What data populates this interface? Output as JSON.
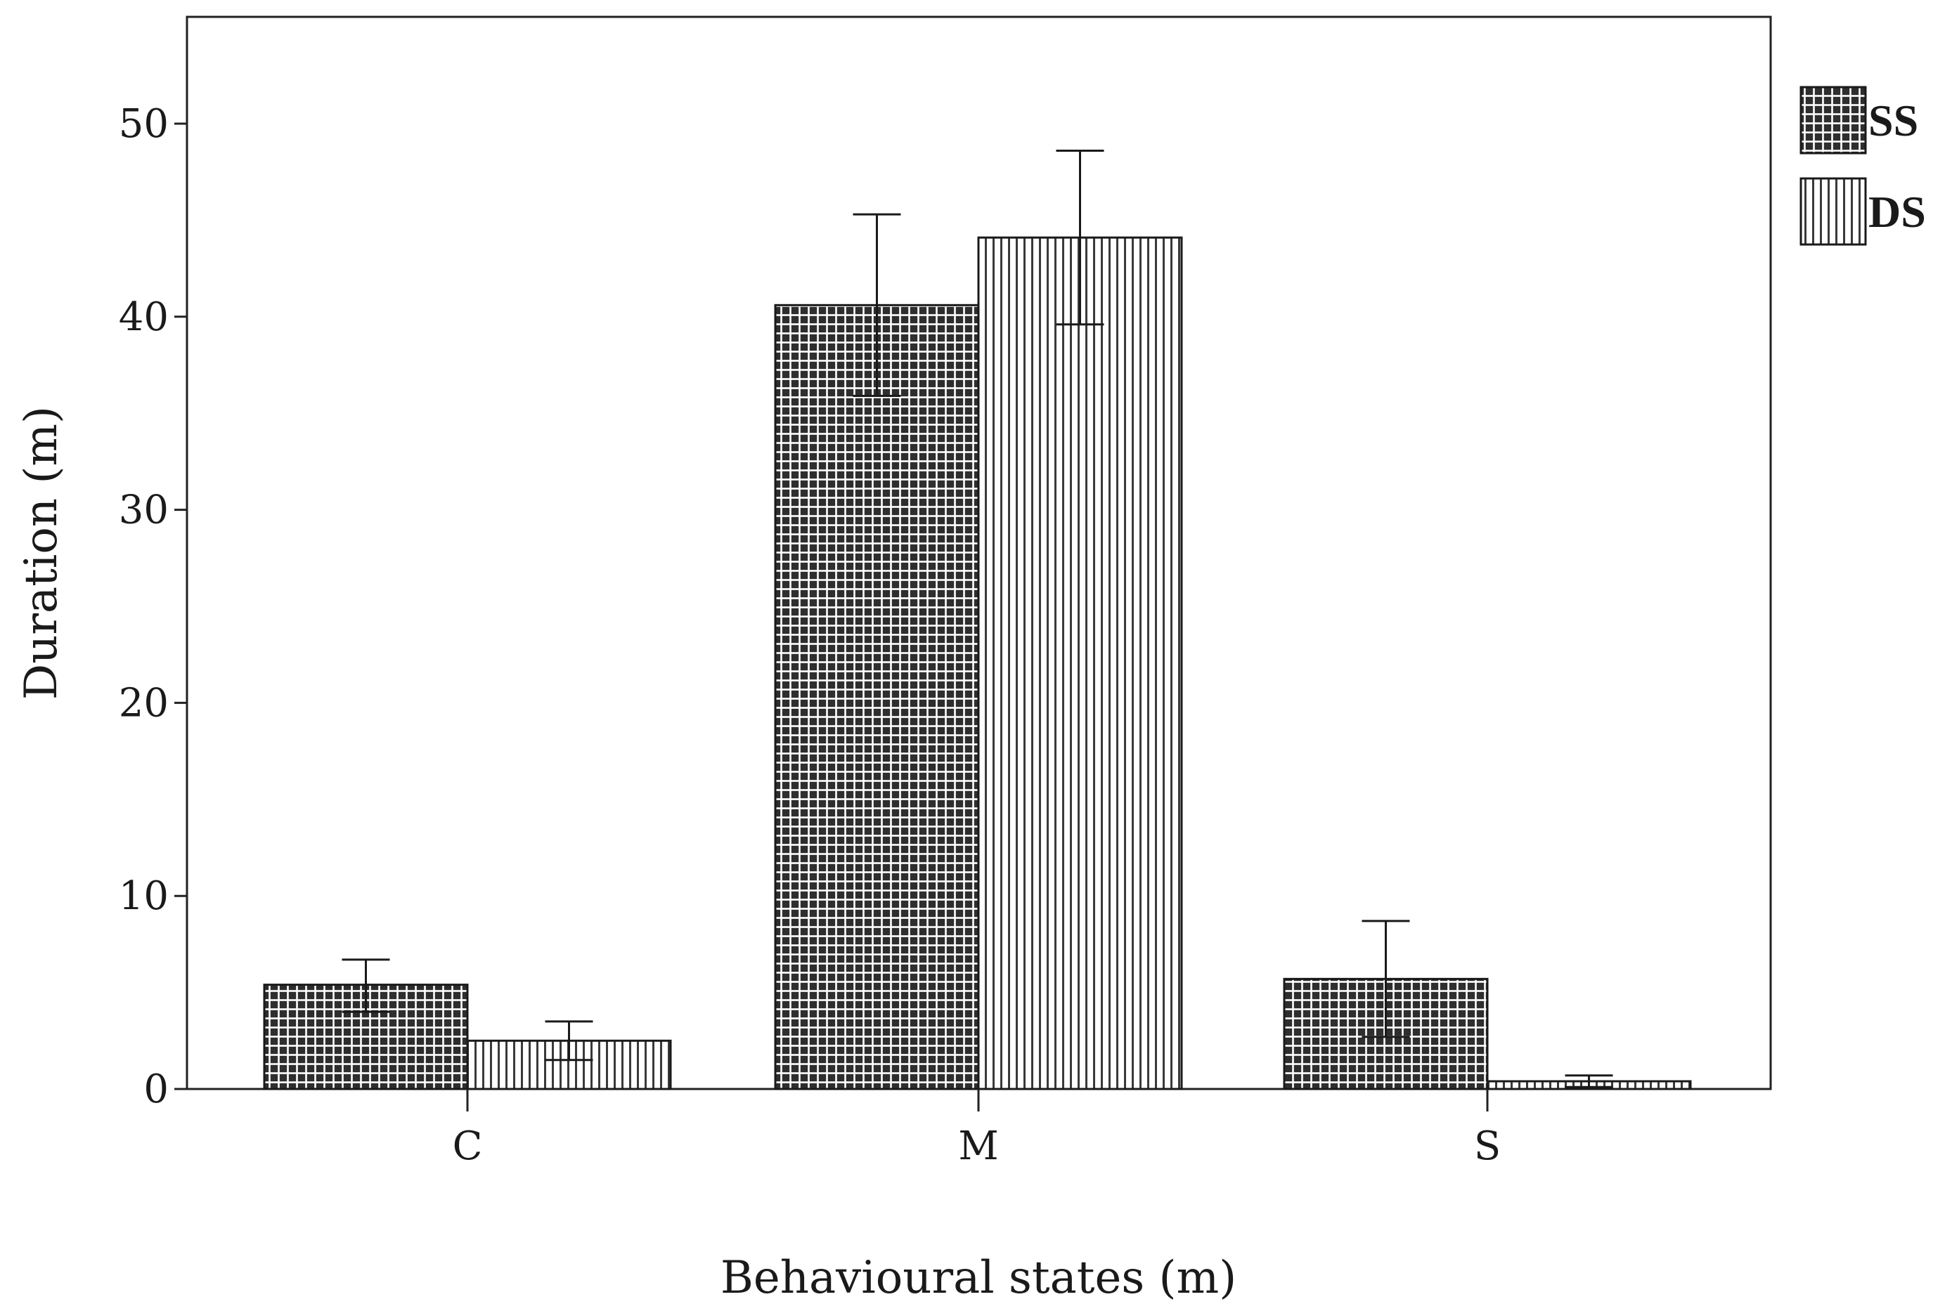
{
  "chart_data": {
    "type": "bar",
    "title": "",
    "xlabel": "Behavioural states (m)",
    "ylabel": "Duration (m)",
    "categories": [
      "C",
      "M",
      "S"
    ],
    "ylim": [
      0,
      55
    ],
    "yticks": [
      0,
      10,
      20,
      30,
      40,
      50
    ],
    "grid": false,
    "legend": "top-right, outside plot",
    "error_bars": true,
    "series": [
      {
        "name": "SS",
        "pattern": "grid",
        "fill_color": "#2e2e2e",
        "line_color": "#ffffff",
        "values": [
          5.4,
          40.6,
          5.7
        ],
        "error_upper": [
          6.7,
          45.3,
          8.7
        ],
        "error_lower": [
          4.0,
          35.9,
          2.7
        ]
      },
      {
        "name": "DS",
        "pattern": "vertical-lines",
        "fill_color": "#ffffff",
        "line_color": "#3a3a3a",
        "values": [
          2.5,
          44.1,
          0.4
        ],
        "error_upper": [
          3.5,
          48.6,
          0.7
        ],
        "error_lower": [
          1.5,
          39.6,
          0.1
        ]
      }
    ]
  }
}
